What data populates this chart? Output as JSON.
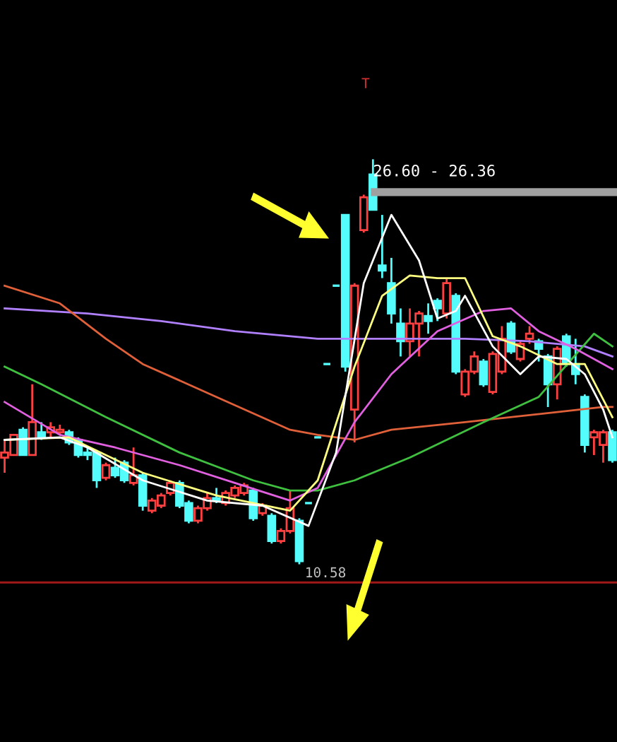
{
  "chart_data": {
    "type": "candlestick",
    "categories": [
      null,
      null,
      null,
      null,
      null,
      null,
      null,
      null,
      null,
      null,
      null,
      null,
      null,
      null,
      null,
      null,
      null,
      null,
      null,
      null,
      null,
      null,
      null,
      null,
      null,
      null,
      null,
      null,
      null,
      null,
      null,
      null,
      null,
      null,
      null,
      null,
      null,
      null,
      null,
      null,
      null,
      null,
      null,
      null,
      null,
      null,
      null,
      null,
      null,
      null,
      null,
      null,
      null,
      null,
      null,
      null,
      null,
      null,
      null,
      null,
      null,
      null,
      null,
      null,
      null,
      null,
      null
    ],
    "ohlc": [
      [
        14.8,
        15.5,
        14.2,
        15.0
      ],
      [
        14.9,
        15.7,
        14.9,
        15.7
      ],
      [
        15.9,
        16.0,
        14.9,
        14.9
      ],
      [
        14.9,
        17.7,
        14.9,
        16.2
      ],
      [
        15.8,
        16.2,
        15.5,
        15.6
      ],
      [
        15.8,
        16.2,
        15.6,
        16.0
      ],
      [
        15.8,
        16.1,
        15.7,
        15.9
      ],
      [
        15.8,
        15.9,
        15.3,
        15.4
      ],
      [
        15.5,
        15.6,
        14.8,
        14.9
      ],
      [
        15.0,
        15.2,
        14.7,
        14.9
      ],
      [
        15.0,
        15.1,
        13.6,
        13.9
      ],
      [
        14.0,
        14.6,
        13.9,
        14.5
      ],
      [
        14.4,
        14.8,
        14.0,
        14.1
      ],
      [
        14.6,
        14.7,
        13.8,
        13.9
      ],
      [
        13.8,
        15.2,
        13.7,
        14.1
      ],
      [
        14.1,
        14.2,
        12.7,
        12.9
      ],
      [
        12.7,
        13.2,
        12.6,
        13.1
      ],
      [
        12.9,
        13.4,
        12.8,
        13.3
      ],
      [
        13.4,
        13.9,
        13.3,
        13.8
      ],
      [
        13.8,
        13.9,
        12.8,
        12.9
      ],
      [
        13.0,
        13.1,
        12.2,
        12.3
      ],
      [
        12.3,
        12.9,
        12.2,
        12.8
      ],
      [
        12.8,
        13.4,
        12.7,
        13.2
      ],
      [
        13.2,
        13.6,
        13.0,
        13.1
      ],
      [
        13.0,
        13.5,
        12.9,
        13.4
      ],
      [
        13.3,
        13.7,
        13.2,
        13.6
      ],
      [
        13.4,
        13.8,
        13.3,
        13.7
      ],
      [
        13.5,
        13.6,
        12.3,
        12.4
      ],
      [
        12.6,
        13.0,
        12.5,
        12.9
      ],
      [
        12.5,
        12.6,
        11.4,
        11.5
      ],
      [
        11.5,
        12.0,
        11.4,
        11.9
      ],
      [
        11.9,
        13.5,
        11.8,
        12.8
      ],
      [
        12.3,
        12.4,
        10.58,
        10.7
      ],
      [
        13.0,
        13.0,
        13.0,
        13.0
      ],
      [
        15.6,
        15.6,
        15.6,
        15.6
      ],
      [
        18.5,
        18.5,
        18.5,
        18.5
      ],
      [
        21.6,
        21.6,
        21.6,
        21.6
      ],
      [
        24.4,
        24.4,
        18.2,
        18.4
      ],
      [
        16.7,
        21.7,
        15.4,
        21.6
      ],
      [
        23.8,
        25.2,
        23.7,
        25.1
      ],
      [
        26.0,
        26.6,
        24.6,
        24.6
      ],
      [
        22.4,
        24.4,
        21.9,
        22.2
      ],
      [
        21.7,
        22.7,
        20.1,
        20.5
      ],
      [
        20.1,
        20.7,
        18.8,
        19.4
      ],
      [
        19.4,
        20.7,
        18.8,
        20.1
      ],
      [
        20.1,
        20.6,
        18.8,
        20.5
      ],
      [
        20.4,
        20.9,
        19.7,
        20.2
      ],
      [
        21.0,
        21.1,
        20.2,
        20.7
      ],
      [
        20.5,
        21.9,
        20.3,
        21.7
      ],
      [
        21.2,
        21.3,
        18.1,
        18.2
      ],
      [
        17.3,
        18.3,
        17.2,
        18.2
      ],
      [
        18.2,
        19.0,
        18.1,
        18.8
      ],
      [
        18.6,
        18.7,
        17.6,
        17.7
      ],
      [
        17.4,
        19.0,
        17.3,
        18.9
      ],
      [
        18.2,
        20.0,
        18.1,
        19.5
      ],
      [
        20.1,
        20.2,
        18.9,
        19.0
      ],
      [
        18.7,
        19.4,
        18.6,
        19.3
      ],
      [
        19.5,
        20.0,
        19.3,
        19.7
      ],
      [
        19.4,
        19.5,
        18.6,
        19.1
      ],
      [
        18.8,
        18.9,
        16.8,
        17.7
      ],
      [
        17.7,
        19.2,
        17.1,
        19.1
      ],
      [
        19.6,
        19.7,
        18.4,
        18.5
      ],
      [
        18.5,
        19.5,
        17.7,
        18.1
      ],
      [
        17.2,
        17.3,
        15.0,
        15.3
      ],
      [
        15.6,
        15.9,
        14.9,
        15.8
      ],
      [
        15.3,
        15.9,
        14.6,
        15.8
      ],
      [
        15.8,
        15.9,
        14.6,
        14.7
      ]
    ],
    "colors": [
      "#ff4040",
      "#ff4040",
      "#54fcfc",
      "#ff4040",
      "#54fcfc",
      "#ff4040",
      "#ff4040",
      "#54fcfc",
      "#54fcfc",
      "#54fcfc",
      "#54fcfc",
      "#ff4040",
      "#54fcfc",
      "#54fcfc",
      "#ff4040",
      "#54fcfc",
      "#ff4040",
      "#ff4040",
      "#ff4040",
      "#54fcfc",
      "#54fcfc",
      "#ff4040",
      "#ff4040",
      "#54fcfc",
      "#ff4040",
      "#ff4040",
      "#ff4040",
      "#54fcfc",
      "#ff4040",
      "#54fcfc",
      "#ff4040",
      "#ff4040",
      "#54fcfc",
      "#54fcfc",
      "#54fcfc",
      "#54fcfc",
      "#54fcfc",
      "#54fcfc",
      "#ff4040",
      "#ff4040",
      "#54fcfc",
      "#54fcfc",
      "#54fcfc",
      "#54fcfc",
      "#ff4040",
      "#ff4040",
      "#54fcfc",
      "#54fcfc",
      "#ff4040",
      "#54fcfc",
      "#ff4040",
      "#ff4040",
      "#54fcfc",
      "#ff4040",
      "#ff4040",
      "#54fcfc",
      "#ff4040",
      "#ff4040",
      "#54fcfc",
      "#54fcfc",
      "#ff4040",
      "#54fcfc",
      "#54fcfc",
      "#54fcfc",
      "#ff4040",
      "#ff4040",
      "#54fcfc"
    ],
    "ylim": [
      3.55,
      32.9
    ],
    "ref_lines": [
      {
        "axis": "y",
        "value": 9.86,
        "color": "#a01818"
      }
    ],
    "grid": false,
    "series": [
      {
        "type": "line",
        "color": "#b080ff",
        "values": [
          20.7,
          null,
          null,
          null,
          null,
          null,
          null,
          null,
          null,
          20.5,
          null,
          null,
          null,
          null,
          null,
          null,
          null,
          20.2,
          null,
          null,
          null,
          null,
          null,
          null,
          null,
          19.8,
          null,
          null,
          null,
          null,
          null,
          null,
          null,
          null,
          19.5,
          null,
          null,
          null,
          null,
          null,
          null,
          19.5,
          null,
          null,
          null,
          null,
          null,
          null,
          null,
          null,
          19.5,
          null,
          null,
          null,
          null,
          null,
          null,
          19.4,
          null,
          null,
          null,
          null,
          null,
          19.2,
          null,
          null,
          18.8
        ]
      },
      {
        "type": "line",
        "color": "#e0603a",
        "values": [
          21.6,
          null,
          null,
          null,
          null,
          null,
          20.9,
          null,
          null,
          null,
          null,
          19.5,
          null,
          null,
          null,
          18.5,
          null,
          null,
          null,
          null,
          null,
          null,
          null,
          17.2,
          null,
          null,
          null,
          null,
          null,
          null,
          null,
          15.9,
          null,
          null,
          15.7,
          null,
          null,
          null,
          15.5,
          null,
          null,
          null,
          15.9,
          null,
          null,
          null,
          null,
          null,
          null,
          null,
          16.2,
          null,
          null,
          null,
          null,
          null,
          null,
          null,
          null,
          null,
          16.6,
          null,
          null,
          null,
          null,
          16.8,
          16.8
        ]
      },
      {
        "type": "line",
        "color": "#40c040",
        "values": [
          18.4,
          null,
          null,
          null,
          17.7,
          null,
          null,
          null,
          null,
          null,
          null,
          16.4,
          null,
          null,
          null,
          null,
          null,
          null,
          null,
          15.0,
          null,
          null,
          null,
          null,
          null,
          null,
          null,
          13.9,
          null,
          null,
          null,
          13.5,
          null,
          null,
          13.5,
          null,
          null,
          null,
          13.9,
          null,
          null,
          null,
          null,
          null,
          14.8,
          null,
          null,
          null,
          null,
          null,
          null,
          null,
          16.2,
          null,
          null,
          null,
          null,
          null,
          17.2,
          null,
          null,
          null,
          null,
          null,
          19.7,
          null,
          19.2
        ]
      },
      {
        "type": "line",
        "color": "#e060e0",
        "values": [
          17.0,
          null,
          null,
          null,
          null,
          null,
          15.7,
          null,
          null,
          null,
          null,
          null,
          15.2,
          null,
          null,
          null,
          null,
          null,
          null,
          14.5,
          null,
          null,
          null,
          null,
          null,
          13.8,
          null,
          null,
          null,
          null,
          null,
          13.1,
          null,
          null,
          13.6,
          null,
          null,
          null,
          16.2,
          null,
          null,
          null,
          18.1,
          null,
          null,
          null,
          null,
          19.8,
          null,
          null,
          null,
          null,
          20.6,
          null,
          null,
          20.7,
          null,
          null,
          19.8,
          null,
          null,
          null,
          19.1,
          null,
          null,
          null,
          18.3
        ]
      },
      {
        "type": "line",
        "color": "#ffff80",
        "values": [
          15.5,
          null,
          null,
          null,
          null,
          null,
          null,
          15.6,
          null,
          null,
          null,
          null,
          null,
          null,
          null,
          14.2,
          null,
          null,
          null,
          null,
          null,
          null,
          null,
          13.3,
          null,
          null,
          null,
          null,
          null,
          null,
          null,
          12.7,
          null,
          null,
          13.9,
          null,
          null,
          null,
          18.4,
          null,
          null,
          21.2,
          null,
          null,
          22.0,
          null,
          null,
          21.9,
          null,
          null,
          21.9,
          null,
          null,
          19.6,
          null,
          null,
          19.2,
          null,
          null,
          null,
          18.5,
          null,
          null,
          18.5,
          null,
          null,
          16.4
        ]
      },
      {
        "type": "line",
        "color": "#ffffff",
        "values": [
          15.5,
          null,
          null,
          null,
          null,
          null,
          15.6,
          null,
          null,
          15.2,
          null,
          null,
          null,
          null,
          null,
          13.9,
          null,
          null,
          null,
          null,
          null,
          null,
          13.1,
          null,
          null,
          null,
          null,
          null,
          12.9,
          null,
          null,
          null,
          null,
          12.1,
          null,
          null,
          15.0,
          null,
          null,
          21.7,
          null,
          null,
          24.4,
          null,
          null,
          22.6,
          null,
          20.3,
          null,
          20.6,
          21.2,
          null,
          null,
          19.2,
          null,
          null,
          18.1,
          null,
          18.8,
          null,
          null,
          18.7,
          null,
          18.1,
          null,
          16.7,
          15.6
        ]
      }
    ],
    "annotations": [
      "T",
      "26.60 - 26.36",
      "10.58"
    ]
  }
}
